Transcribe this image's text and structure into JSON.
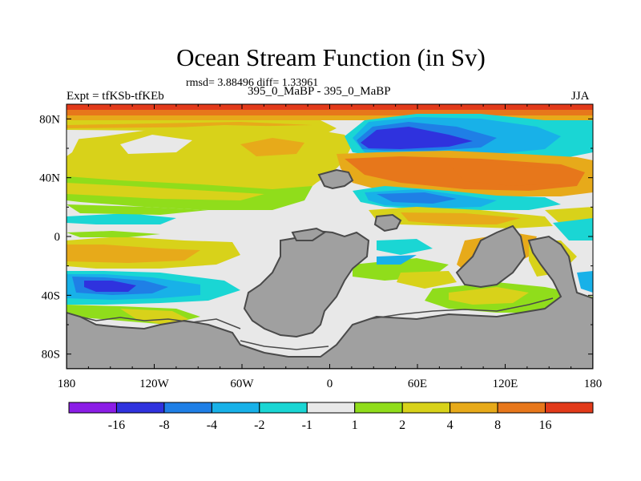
{
  "title": "Ocean Stream Function (in Sv)",
  "stats_line": "rmsd= 3.88496 diff= 1.33961",
  "left_label": "Expt = tfKSb-tfKEb",
  "center_label": "395_0_MaBP - 395_0_MaBP",
  "right_label": "JJA",
  "chart_data": {
    "type": "filled-contour-map",
    "variable": "Ocean Stream Function",
    "units": "Sv",
    "x_axis": {
      "range": [
        -180,
        180
      ],
      "ticks": [
        "180",
        "120W",
        "60W",
        "0",
        "60E",
        "120E",
        "180"
      ]
    },
    "y_axis": {
      "range": [
        -90,
        90
      ],
      "ticks": [
        "80N",
        "40N",
        "0",
        "40S",
        "80S"
      ]
    },
    "colorbar": {
      "levels": [
        "-16",
        "-8",
        "-4",
        "-2",
        "-1",
        "1",
        "2",
        "4",
        "8",
        "16"
      ],
      "colors": [
        "#8b1de6",
        "#2f32de",
        "#1f7fe6",
        "#18b1e8",
        "#1ad6d4",
        "#e8e8e8",
        "#90dd1b",
        "#d8d21a",
        "#e7aa1a",
        "#e7771b",
        "#e23a1a"
      ]
    }
  }
}
